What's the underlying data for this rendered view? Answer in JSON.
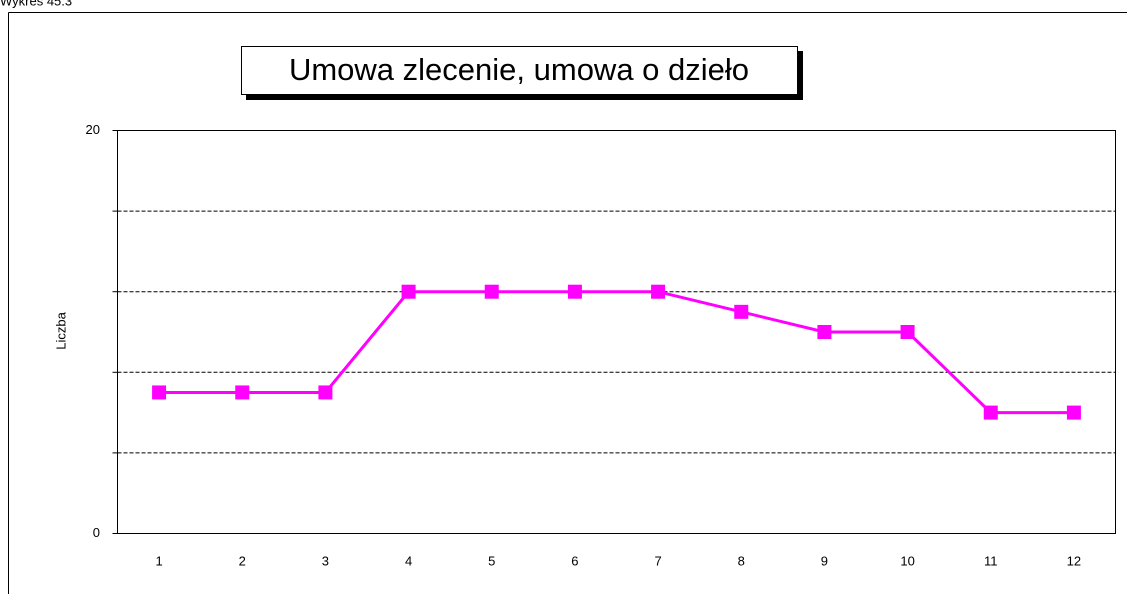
{
  "caption": "Wykres 45.3",
  "chart_data": {
    "type": "line",
    "title": "Umowa zlecenie, umowa o dzieło",
    "y_label": "Liczba",
    "categories": [
      "1",
      "2",
      "3",
      "4",
      "5",
      "6",
      "7",
      "8",
      "9",
      "10",
      "11",
      "12"
    ],
    "values": [
      7,
      7,
      7,
      12,
      12,
      12,
      12,
      11,
      10,
      10,
      6,
      6
    ],
    "color": "#ff00ff",
    "ylim": [
      0,
      20
    ],
    "yticks": [
      0,
      20
    ],
    "ygrid": [
      4,
      8,
      12,
      16
    ],
    "grid": true
  }
}
